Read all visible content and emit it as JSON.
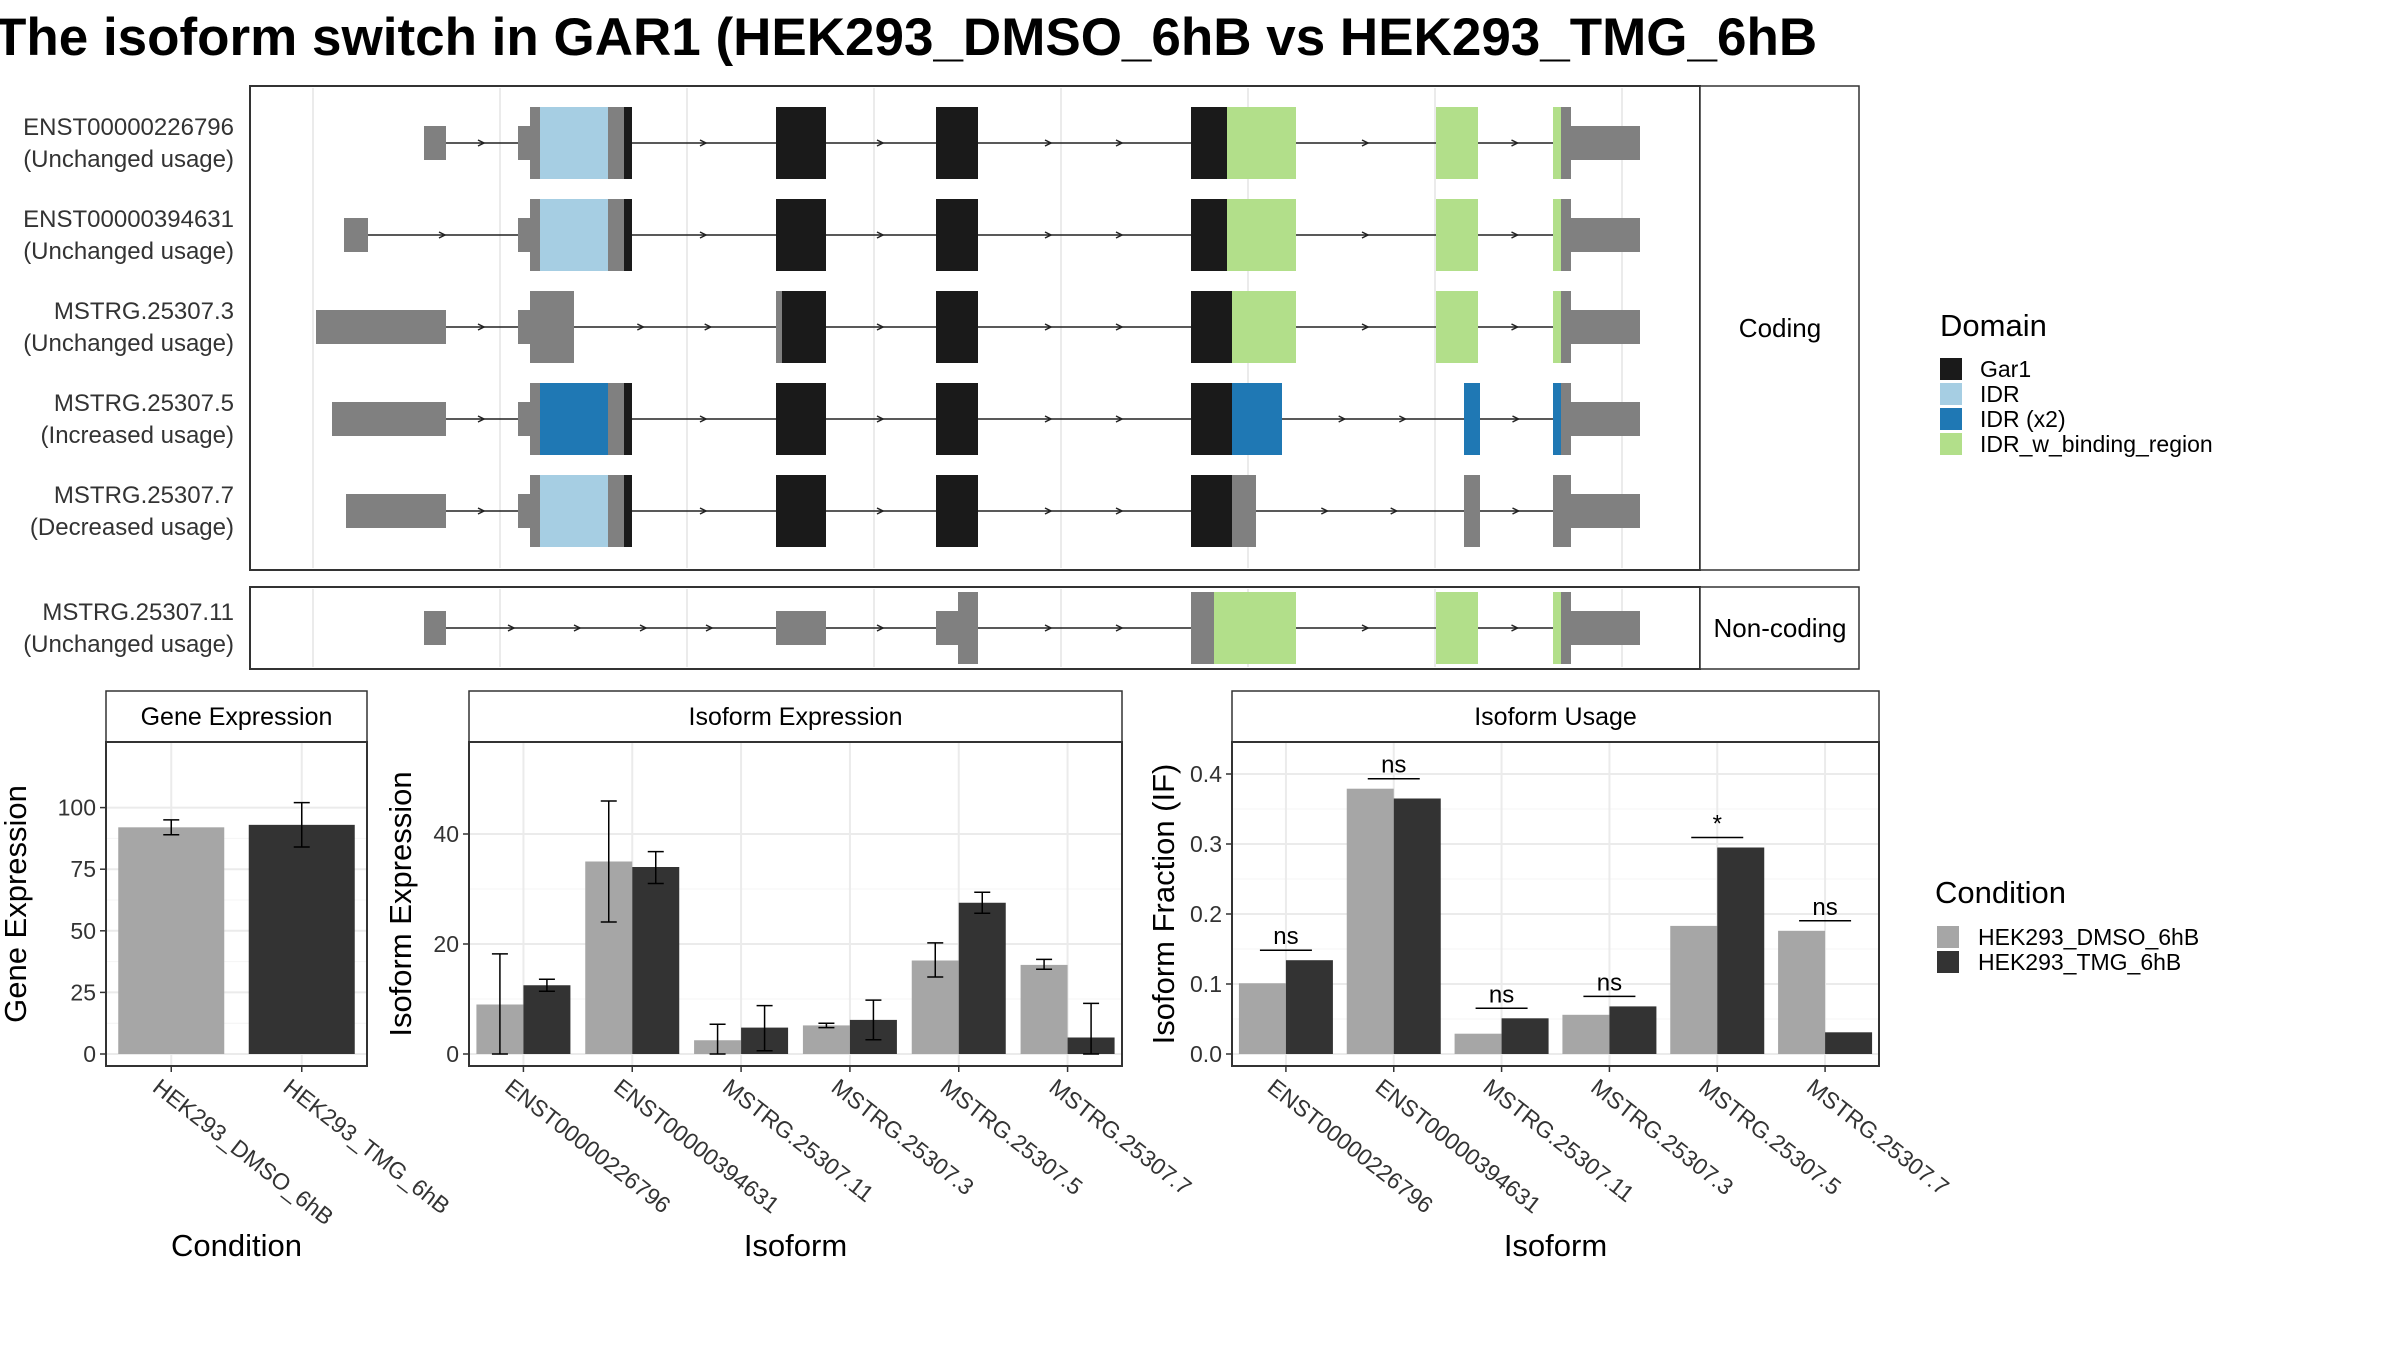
{
  "title": "The isoform switch in GAR1 (HEK293_DMSO_6hB vs HEK293_TMG_6hB",
  "colors": {
    "gar1": "#1a1a1a",
    "idr": "#a6cee3",
    "idr_x2": "#1f78b4",
    "idr_w_binding_region": "#b2df8a",
    "utr": "#808080",
    "dmso": "#a6a6a6",
    "tmg": "#333333",
    "panel_border": "#333333",
    "grid": "#ebebeb"
  },
  "structure": {
    "facets": [
      "Coding",
      "Non-coding"
    ],
    "transcripts": [
      {
        "id": "ENST00000226796",
        "usage": "(Unchanged usage)",
        "facet": "Coding"
      },
      {
        "id": "ENST00000394631",
        "usage": "(Unchanged usage)",
        "facet": "Coding"
      },
      {
        "id": "MSTRG.25307.3",
        "usage": "(Unchanged usage)",
        "facet": "Coding"
      },
      {
        "id": "MSTRG.25307.5",
        "usage": "(Increased usage)",
        "facet": "Coding"
      },
      {
        "id": "MSTRG.25307.7",
        "usage": "(Decreased usage)",
        "facet": "Coding"
      },
      {
        "id": "MSTRG.25307.11",
        "usage": "(Unchanged usage)",
        "facet": "Non-coding"
      }
    ],
    "domain_legend": {
      "title": "Domain",
      "items": [
        {
          "label": "Gar1",
          "color": "#1a1a1a"
        },
        {
          "label": "IDR",
          "color": "#a6cee3"
        },
        {
          "label": "IDR (x2)",
          "color": "#1f78b4"
        },
        {
          "label": "IDR_w_binding_region",
          "color": "#b2df8a"
        }
      ]
    }
  },
  "condition_legend": {
    "title": "Condition",
    "items": [
      {
        "label": "HEK293_DMSO_6hB",
        "color": "#a6a6a6"
      },
      {
        "label": "HEK293_TMG_6hB",
        "color": "#333333"
      }
    ]
  },
  "chart_data": [
    {
      "type": "bar",
      "title": "Gene Expression",
      "xlabel": "Condition",
      "ylabel": "Gene Expression",
      "ylim": [
        0,
        125
      ],
      "yticks": [
        0,
        25,
        50,
        75,
        100
      ],
      "categories": [
        "HEK293_DMSO_6hB",
        "HEK293_TMG_6hB"
      ],
      "values": [
        92,
        93
      ],
      "error": [
        [
          89,
          95
        ],
        [
          84,
          102
        ]
      ],
      "colors": [
        "#a6a6a6",
        "#333333"
      ]
    },
    {
      "type": "bar",
      "title": "Isoform Expression",
      "xlabel": "Isoform",
      "ylabel": "Isoform Expression",
      "ylim": [
        0,
        56
      ],
      "yticks": [
        0,
        20,
        40
      ],
      "categories": [
        "ENST00000226796",
        "ENST00000394631",
        "MSTRG.25307.11",
        "MSTRG.25307.3",
        "MSTRG.25307.5",
        "MSTRG.25307.7"
      ],
      "series": [
        {
          "name": "HEK293_DMSO_6hB",
          "values": [
            9,
            35,
            2.5,
            5.2,
            17,
            16.2
          ],
          "error": [
            [
              0,
              18.2
            ],
            [
              24,
              46
            ],
            [
              0,
              5.4
            ],
            [
              4.8,
              5.6
            ],
            [
              14,
              20.2
            ],
            [
              15.4,
              17.2
            ]
          ]
        },
        {
          "name": "HEK293_TMG_6hB",
          "values": [
            12.5,
            34,
            4.8,
            6.2,
            27.5,
            3
          ],
          "error": [
            [
              11.4,
              13.6
            ],
            [
              31,
              36.8
            ],
            [
              0.6,
              8.8
            ],
            [
              2.6,
              9.8
            ],
            [
              25.6,
              29.4
            ],
            [
              0,
              9.2
            ]
          ]
        }
      ]
    },
    {
      "type": "bar",
      "title": "Isoform Usage",
      "xlabel": "Isoform",
      "ylabel": "Isoform Fraction (IF)",
      "ylim": [
        0,
        0.44
      ],
      "yticks": [
        0.0,
        0.1,
        0.2,
        0.3,
        0.4
      ],
      "ytick_labels": [
        "0.0",
        "0.1",
        "0.2",
        "0.3",
        "0.4"
      ],
      "categories": [
        "ENST00000226796",
        "ENST00000394631",
        "MSTRG.25307.11",
        "MSTRG.25307.3",
        "MSTRG.25307.5",
        "MSTRG.25307.7"
      ],
      "series": [
        {
          "name": "HEK293_DMSO_6hB",
          "values": [
            0.101,
            0.379,
            0.029,
            0.056,
            0.183,
            0.176
          ]
        },
        {
          "name": "HEK293_TMG_6hB",
          "values": [
            0.134,
            0.365,
            0.051,
            0.068,
            0.295,
            0.031
          ]
        }
      ],
      "significance": [
        "ns",
        "ns",
        "ns",
        "ns",
        "*",
        "ns"
      ]
    }
  ]
}
